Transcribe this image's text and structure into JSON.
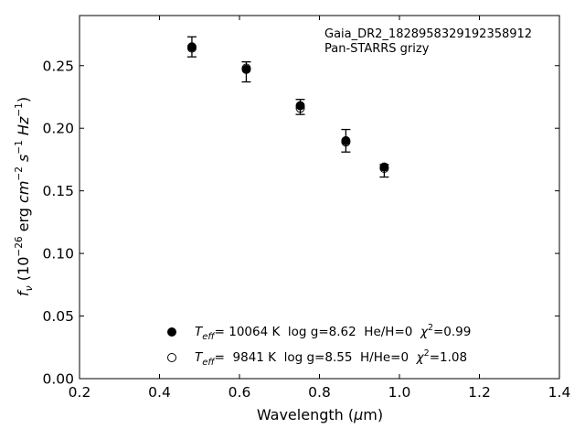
{
  "chart_data": {
    "type": "scatter",
    "annotation_lines": [
      "Gaia_DR2_1828958329192358912",
      "Pan-STARRS grizy"
    ],
    "xlabel": {
      "main": "Wavelength (",
      "sym": "μ",
      "tail": "m)"
    },
    "ylabel": {
      "f": "f",
      "nu": "ν",
      "open": " (10",
      "exp1": "−26",
      "erg": " erg ",
      "cm": "cm",
      "exp2": "−2",
      "s": "s",
      "exp3": "−1",
      "hz": "Hz",
      "exp4": "−1",
      "close": ")"
    },
    "xlim": [
      0.2,
      1.4
    ],
    "ylim": [
      0.0,
      0.29
    ],
    "x_ticks": [
      0.2,
      0.4,
      0.6,
      0.8,
      1.0,
      1.2,
      1.4
    ],
    "x_tick_labels": [
      "0.2",
      "0.4",
      "0.6",
      "0.8",
      "1.0",
      "1.2",
      "1.4"
    ],
    "y_ticks": [
      0.0,
      0.05,
      0.1,
      0.15,
      0.2,
      0.25
    ],
    "y_tick_labels": [
      "0.00",
      "0.05",
      "0.10",
      "0.15",
      "0.20",
      "0.25"
    ],
    "grid": false,
    "legend_placement": "bottom-center",
    "series": [
      {
        "marker": "filled",
        "x": [
          0.481,
          0.617,
          0.752,
          0.866,
          0.962
        ],
        "y": [
          0.265,
          0.247,
          0.218,
          0.19,
          0.169
        ],
        "legend": {
          "T": "T",
          "sub": "eff",
          "a": "= 10064 K  log g=8.62  He/H=0  ",
          "chi": "χ",
          "sup": "2",
          "b": "=0.99"
        }
      },
      {
        "marker": "open",
        "x": [
          0.481,
          0.617,
          0.752,
          0.866,
          0.962
        ],
        "y": [
          0.264,
          0.248,
          0.216,
          0.189,
          0.168
        ],
        "legend": {
          "T": "T",
          "sub": "eff",
          "a": "=  9841 K  log g=8.55  H/He=0  ",
          "chi": "χ",
          "sup": "2",
          "b": "=1.08"
        }
      }
    ],
    "observed": {
      "x": [
        0.481,
        0.617,
        0.752,
        0.866,
        0.962
      ],
      "y": [
        0.265,
        0.245,
        0.217,
        0.19,
        0.166
      ],
      "err": [
        0.008,
        0.008,
        0.006,
        0.009,
        0.005
      ]
    }
  }
}
